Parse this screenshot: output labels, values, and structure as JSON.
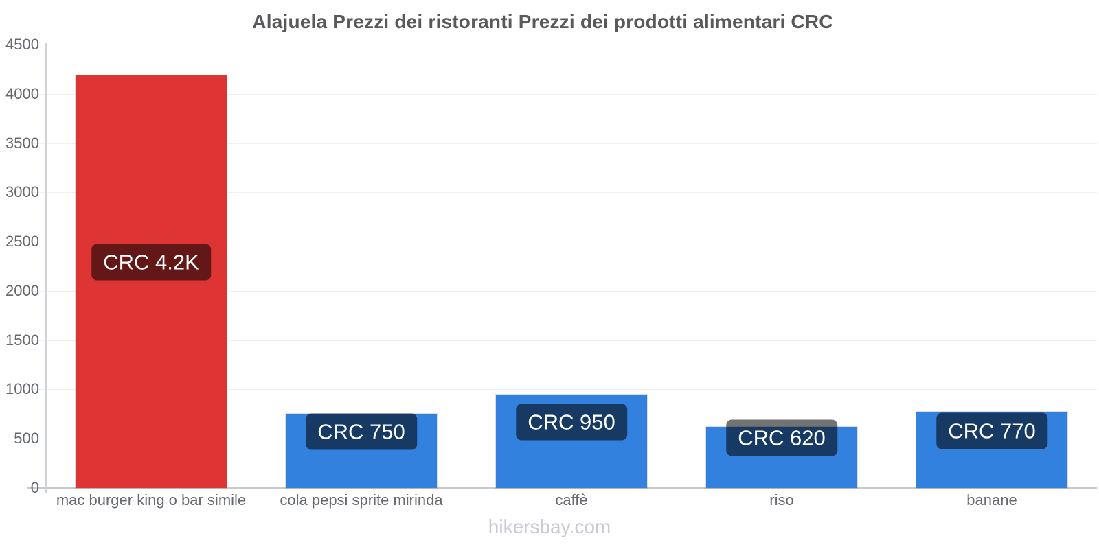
{
  "title": "Alajuela Prezzi dei ristoranti Prezzi dei prodotti alimentari CRC",
  "footer": "hikersbay.com",
  "colors": {
    "restaurant_bar": "#de3434",
    "grocery_bar": "#3381de",
    "value_label_bg": "rgba(0,0,0,0.55)",
    "value_label_text": "#ffffff",
    "title_text": "#58595b",
    "axis_text": "#66696d",
    "gridline": "#f0f0f0",
    "zero_line": "#c9c9c9",
    "footer_text": "#c7c9d3"
  },
  "chart_data": {
    "type": "bar",
    "title": "Alajuela Prezzi dei ristoranti Prezzi dei prodotti alimentari CRC",
    "xlabel": "",
    "ylabel": "",
    "ylim": [
      0,
      4500
    ],
    "yticks": [
      0,
      500,
      1000,
      1500,
      2000,
      2500,
      3000,
      3500,
      4000,
      4500
    ],
    "grid": true,
    "legend": false,
    "currency": "CRC",
    "categories": [
      "mac burger king o bar simile",
      "cola pepsi sprite mirinda",
      "caffè",
      "riso",
      "banane"
    ],
    "values": [
      4190,
      750,
      950,
      620,
      770
    ],
    "bar_labels": [
      "CRC 4.2K",
      "CRC 750",
      "CRC 950",
      "CRC 620",
      "CRC 770"
    ],
    "bar_colors": [
      "#de3434",
      "#3381de",
      "#3381de",
      "#3381de",
      "#3381de"
    ]
  }
}
